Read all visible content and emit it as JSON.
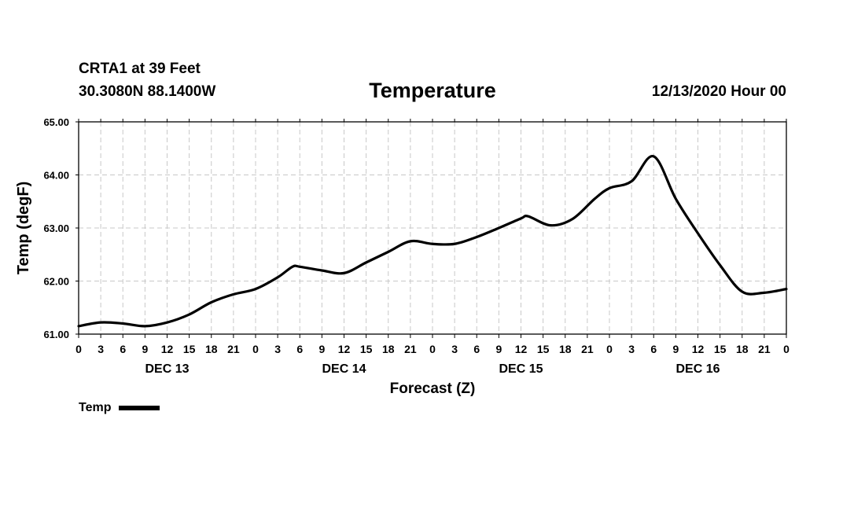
{
  "header": {
    "station": "CRTA1 at 39 Feet",
    "coords": "30.3080N 88.1400W",
    "title": "Temperature",
    "date": "12/13/2020 Hour 00"
  },
  "chart_data": {
    "type": "line",
    "title": "Temperature",
    "xlabel": "Forecast (Z)",
    "ylabel": "Temp (degF)",
    "ylim": [
      61.0,
      65.0
    ],
    "xlim": [
      0,
      96
    ],
    "grid": true,
    "y_ticks": [
      "61.00",
      "62.00",
      "63.00",
      "64.00",
      "65.00"
    ],
    "x_tick_labels": [
      "0",
      "3",
      "6",
      "9",
      "12",
      "15",
      "18",
      "21",
      "0",
      "3",
      "6",
      "9",
      "12",
      "15",
      "18",
      "21",
      "0",
      "3",
      "6",
      "9",
      "12",
      "15",
      "18",
      "21",
      "0",
      "3",
      "6",
      "9",
      "12",
      "15",
      "18",
      "21",
      "0"
    ],
    "day_labels": [
      {
        "label": "DEC 13",
        "hour": 12
      },
      {
        "label": "DEC 14",
        "hour": 36
      },
      {
        "label": "DEC 15",
        "hour": 60
      },
      {
        "label": "DEC 16",
        "hour": 84
      }
    ],
    "series": [
      {
        "name": "Temp",
        "color": "#000000",
        "x": [
          0,
          3,
          6,
          9,
          12,
          15,
          18,
          21,
          24,
          27,
          29,
          30,
          33,
          36,
          39,
          42,
          45,
          48,
          51,
          54,
          57,
          60,
          61,
          64,
          67,
          70,
          72,
          75,
          78,
          81,
          84,
          87,
          90,
          93,
          96
        ],
        "values": [
          61.15,
          61.22,
          61.2,
          61.15,
          61.22,
          61.37,
          61.6,
          61.75,
          61.85,
          62.07,
          62.27,
          62.27,
          62.2,
          62.15,
          62.35,
          62.55,
          62.75,
          62.7,
          62.7,
          62.83,
          63.0,
          63.18,
          63.22,
          63.05,
          63.17,
          63.55,
          63.75,
          63.88,
          64.35,
          63.55,
          62.9,
          62.3,
          61.8,
          61.78,
          61.85
        ]
      }
    ]
  },
  "legend": {
    "label": "Temp"
  }
}
